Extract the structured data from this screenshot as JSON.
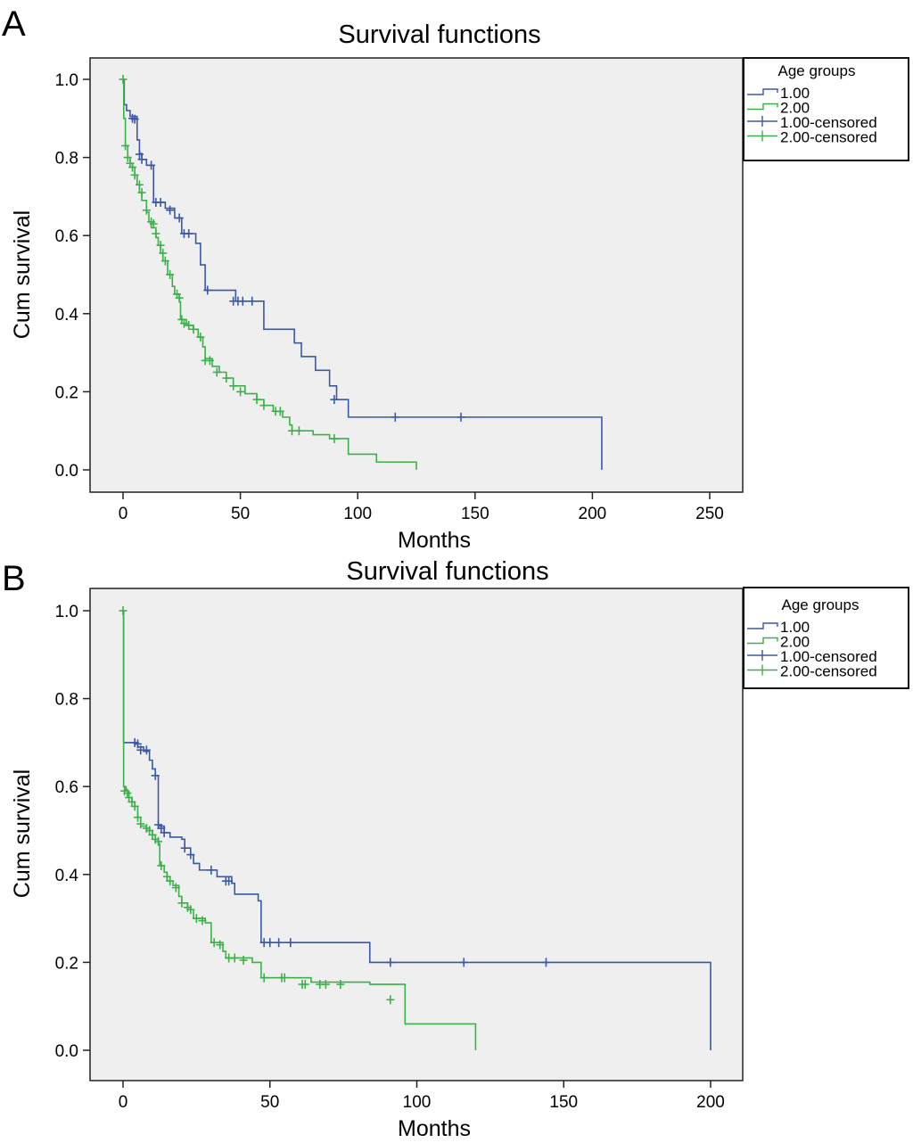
{
  "chart_data": [
    {
      "panel": "A",
      "type": "line",
      "subtype": "kaplan-meier step",
      "title": "Survival functions",
      "xlabel": "Months",
      "ylabel": "Cum survival",
      "xlim": [
        -14,
        264
      ],
      "ylim": [
        -0.055,
        1.055
      ],
      "xticks": [
        "0",
        "50",
        "100",
        "150",
        "200",
        "250"
      ],
      "xtick_values": [
        0,
        50,
        100,
        150,
        200,
        250
      ],
      "yticks": [
        "0.0",
        "0.2",
        "0.4",
        "0.6",
        "0.8",
        "1.0"
      ],
      "ytick_values": [
        0,
        0.2,
        0.4,
        0.6,
        0.8,
        1.0
      ],
      "grid": false,
      "legend": {
        "position": "right-top",
        "title": "Age groups",
        "entries": [
          "1.00",
          "2.00",
          "1.00-censored",
          "2.00-censored"
        ]
      },
      "series": [
        {
          "name": "1.00",
          "color": "#3b58a6",
          "steps": [
            [
              0,
              1.0
            ],
            [
              0.5,
              0.935
            ],
            [
              1.5,
              0.92
            ],
            [
              3,
              0.905
            ],
            [
              6,
              0.845
            ],
            [
              7,
              0.81
            ],
            [
              8,
              0.795
            ],
            [
              10,
              0.78
            ],
            [
              13,
              0.685
            ],
            [
              18,
              0.67
            ],
            [
              22,
              0.645
            ],
            [
              25,
              0.605
            ],
            [
              31,
              0.58
            ],
            [
              33,
              0.525
            ],
            [
              35,
              0.46
            ],
            [
              48,
              0.432
            ],
            [
              60,
              0.36
            ],
            [
              73,
              0.325
            ],
            [
              76,
              0.29
            ],
            [
              82,
              0.255
            ],
            [
              88,
              0.215
            ],
            [
              91,
              0.18
            ],
            [
              96,
              0.135
            ],
            [
              204,
              0.135
            ],
            [
              204,
              0.0
            ]
          ],
          "censored": [
            [
              4,
              0.9
            ],
            [
              5,
              0.898
            ],
            [
              7,
              0.808
            ],
            [
              8,
              0.795
            ],
            [
              12,
              0.78
            ],
            [
              14,
              0.685
            ],
            [
              16,
              0.685
            ],
            [
              20,
              0.665
            ],
            [
              24,
              0.645
            ],
            [
              26,
              0.605
            ],
            [
              28,
              0.605
            ],
            [
              36,
              0.46
            ],
            [
              47,
              0.432
            ],
            [
              49,
              0.432
            ],
            [
              51,
              0.432
            ],
            [
              55,
              0.432
            ],
            [
              90,
              0.18
            ],
            [
              116,
              0.135
            ],
            [
              144,
              0.135
            ]
          ],
          "end_x": 204
        },
        {
          "name": "2.00",
          "color": "#3cb04a",
          "steps": [
            [
              0,
              1.0
            ],
            [
              0.3,
              0.9
            ],
            [
              1,
              0.83
            ],
            [
              2,
              0.8
            ],
            [
              3,
              0.785
            ],
            [
              4,
              0.775
            ],
            [
              5,
              0.755
            ],
            [
              6,
              0.73
            ],
            [
              7,
              0.71
            ],
            [
              8,
              0.69
            ],
            [
              10,
              0.66
            ],
            [
              11,
              0.635
            ],
            [
              12,
              0.62
            ],
            [
              14,
              0.595
            ],
            [
              15,
              0.575
            ],
            [
              16,
              0.555
            ],
            [
              17,
              0.535
            ],
            [
              19,
              0.5
            ],
            [
              21,
              0.47
            ],
            [
              22,
              0.45
            ],
            [
              24,
              0.43
            ],
            [
              24.5,
              0.385
            ],
            [
              27,
              0.37
            ],
            [
              30,
              0.36
            ],
            [
              32,
              0.34
            ],
            [
              34,
              0.315
            ],
            [
              35,
              0.285
            ],
            [
              38,
              0.265
            ],
            [
              41,
              0.25
            ],
            [
              44,
              0.235
            ],
            [
              47,
              0.215
            ],
            [
              52,
              0.195
            ],
            [
              57,
              0.18
            ],
            [
              60,
              0.165
            ],
            [
              64,
              0.15
            ],
            [
              68,
              0.135
            ],
            [
              71,
              0.115
            ],
            [
              72,
              0.1
            ],
            [
              81,
              0.09
            ],
            [
              88,
              0.08
            ],
            [
              96,
              0.04
            ],
            [
              108,
              0.02
            ],
            [
              125,
              0.02
            ],
            [
              125,
              0.0
            ]
          ],
          "censored": [
            [
              0,
              1.0
            ],
            [
              1,
              0.83
            ],
            [
              2,
              0.8
            ],
            [
              3,
              0.785
            ],
            [
              4,
              0.775
            ],
            [
              5,
              0.755
            ],
            [
              7,
              0.73
            ],
            [
              8,
              0.71
            ],
            [
              10,
              0.665
            ],
            [
              12,
              0.635
            ],
            [
              13,
              0.63
            ],
            [
              14,
              0.605
            ],
            [
              16,
              0.575
            ],
            [
              17,
              0.555
            ],
            [
              18,
              0.535
            ],
            [
              20,
              0.5
            ],
            [
              23,
              0.45
            ],
            [
              24,
              0.44
            ],
            [
              25,
              0.385
            ],
            [
              26,
              0.375
            ],
            [
              28,
              0.37
            ],
            [
              30,
              0.36
            ],
            [
              33,
              0.34
            ],
            [
              35,
              0.28
            ],
            [
              37,
              0.28
            ],
            [
              40,
              0.25
            ],
            [
              44,
              0.235
            ],
            [
              47,
              0.215
            ],
            [
              50,
              0.2
            ],
            [
              57,
              0.18
            ],
            [
              60,
              0.165
            ],
            [
              65,
              0.15
            ],
            [
              67,
              0.15
            ],
            [
              72,
              0.1
            ],
            [
              75,
              0.1
            ],
            [
              90,
              0.08
            ]
          ],
          "end_x": 125
        }
      ]
    },
    {
      "panel": "B",
      "type": "line",
      "subtype": "kaplan-meier step",
      "title": "Survival functions",
      "xlabel": "Months",
      "ylabel": "Cum survival",
      "xlim": [
        -11,
        211
      ],
      "ylim": [
        -0.07,
        1.05
      ],
      "xticks": [
        "0",
        "50",
        "100",
        "150",
        "200"
      ],
      "xtick_values": [
        0,
        50,
        100,
        150,
        200
      ],
      "yticks": [
        "0.0",
        "0.2",
        "0.4",
        "0.6",
        "0.8",
        "1.0"
      ],
      "ytick_values": [
        0,
        0.2,
        0.4,
        0.6,
        0.8,
        1.0
      ],
      "grid": false,
      "legend": {
        "position": "right-top",
        "title": "Age groups",
        "entries": [
          "1.00",
          "2.00",
          "1.00-censored",
          "2.00-censored"
        ]
      },
      "series": [
        {
          "name": "1.00",
          "color": "#3b58a6",
          "steps": [
            [
              0,
              1.0
            ],
            [
              0.2,
              0.7
            ],
            [
              5,
              0.69
            ],
            [
              7,
              0.68
            ],
            [
              9,
              0.66
            ],
            [
              10,
              0.64
            ],
            [
              11,
              0.625
            ],
            [
              12,
              0.51
            ],
            [
              14,
              0.495
            ],
            [
              16,
              0.485
            ],
            [
              20,
              0.48
            ],
            [
              21,
              0.46
            ],
            [
              23,
              0.445
            ],
            [
              24,
              0.425
            ],
            [
              26,
              0.41
            ],
            [
              32,
              0.395
            ],
            [
              37,
              0.38
            ],
            [
              38,
              0.355
            ],
            [
              46,
              0.34
            ],
            [
              47,
              0.245
            ],
            [
              84,
              0.2
            ],
            [
              200,
              0.2
            ],
            [
              200,
              0.0
            ]
          ],
          "censored": [
            [
              4,
              0.7
            ],
            [
              5,
              0.697
            ],
            [
              6,
              0.683
            ],
            [
              8,
              0.683
            ],
            [
              11,
              0.625
            ],
            [
              12,
              0.513
            ],
            [
              13,
              0.505
            ],
            [
              14,
              0.495
            ],
            [
              21,
              0.46
            ],
            [
              23,
              0.445
            ],
            [
              30,
              0.41
            ],
            [
              35,
              0.385
            ],
            [
              36,
              0.385
            ],
            [
              48,
              0.245
            ],
            [
              50,
              0.245
            ],
            [
              53,
              0.245
            ],
            [
              57,
              0.245
            ],
            [
              91,
              0.2
            ],
            [
              116,
              0.2
            ],
            [
              144,
              0.2
            ]
          ],
          "end_x": 200
        },
        {
          "name": "2.00",
          "color": "#3cb04a",
          "steps": [
            [
              0,
              1.0
            ],
            [
              0.2,
              0.6
            ],
            [
              1,
              0.59
            ],
            [
              2,
              0.575
            ],
            [
              3,
              0.565
            ],
            [
              4,
              0.555
            ],
            [
              5,
              0.53
            ],
            [
              6,
              0.51
            ],
            [
              8,
              0.5
            ],
            [
              10,
              0.49
            ],
            [
              11,
              0.48
            ],
            [
              12,
              0.47
            ],
            [
              12.5,
              0.42
            ],
            [
              14,
              0.405
            ],
            [
              15,
              0.385
            ],
            [
              17,
              0.375
            ],
            [
              19,
              0.35
            ],
            [
              20,
              0.335
            ],
            [
              22,
              0.32
            ],
            [
              24,
              0.3
            ],
            [
              28,
              0.29
            ],
            [
              30,
              0.245
            ],
            [
              34,
              0.225
            ],
            [
              35,
              0.21
            ],
            [
              44,
              0.2
            ],
            [
              47,
              0.165
            ],
            [
              64,
              0.155
            ],
            [
              84,
              0.15
            ],
            [
              96,
              0.115
            ],
            [
              96,
              0.06
            ],
            [
              120,
              0.06
            ],
            [
              120,
              0.0
            ]
          ],
          "censored": [
            [
              0,
              1.0
            ],
            [
              0.5,
              0.59
            ],
            [
              1.5,
              0.585
            ],
            [
              2,
              0.575
            ],
            [
              3,
              0.565
            ],
            [
              4,
              0.555
            ],
            [
              5,
              0.53
            ],
            [
              6,
              0.515
            ],
            [
              8,
              0.505
            ],
            [
              9,
              0.5
            ],
            [
              10,
              0.49
            ],
            [
              11,
              0.48
            ],
            [
              12,
              0.475
            ],
            [
              13,
              0.42
            ],
            [
              15,
              0.395
            ],
            [
              16,
              0.385
            ],
            [
              18,
              0.37
            ],
            [
              20,
              0.335
            ],
            [
              22,
              0.325
            ],
            [
              23,
              0.32
            ],
            [
              25,
              0.3
            ],
            [
              27,
              0.295
            ],
            [
              31,
              0.245
            ],
            [
              33,
              0.24
            ],
            [
              36,
              0.21
            ],
            [
              38,
              0.21
            ],
            [
              41,
              0.205
            ],
            [
              48,
              0.165
            ],
            [
              54,
              0.165
            ],
            [
              55,
              0.165
            ],
            [
              61,
              0.15
            ],
            [
              62,
              0.15
            ],
            [
              67,
              0.15
            ],
            [
              69,
              0.15
            ],
            [
              74,
              0.15
            ],
            [
              91,
              0.115
            ]
          ],
          "end_x": 120
        }
      ]
    }
  ],
  "colors": {
    "plot_background": "#efefef",
    "series_1": "#3b58a6",
    "series_2": "#3cb04a",
    "frame": "#222222"
  }
}
